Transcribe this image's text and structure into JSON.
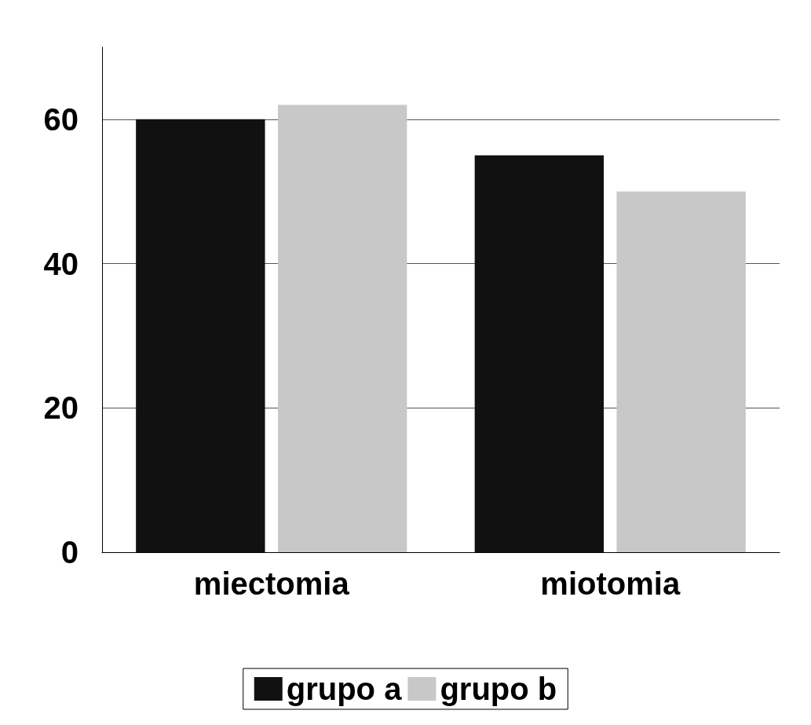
{
  "chart_data": {
    "type": "bar",
    "categories": [
      "miectomia",
      "miotomia"
    ],
    "series": [
      {
        "name": "grupo a",
        "color": "#111111",
        "values": [
          60,
          55
        ]
      },
      {
        "name": "grupo b",
        "color": "#c8c8c8",
        "values": [
          62,
          50
        ]
      }
    ],
    "ylim": [
      0,
      70
    ],
    "yticks": [
      0,
      20,
      40,
      60
    ],
    "grid": "y",
    "legend": "bottom"
  }
}
